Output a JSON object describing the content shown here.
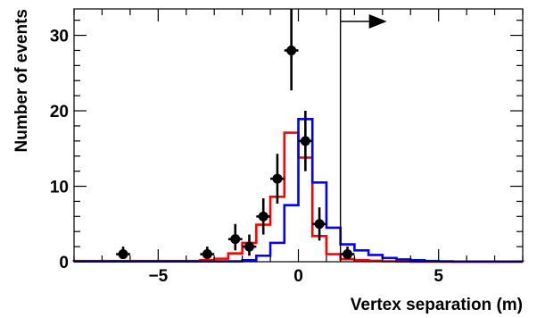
{
  "chart_data": {
    "type": "line",
    "xlabel": "Vertex separation (m)",
    "ylabel": "Number of events",
    "xlim": [
      -8,
      8
    ],
    "ylim": [
      0,
      33.5
    ],
    "x_ticks": [
      -5,
      0,
      5
    ],
    "y_ticks": [
      0,
      10,
      20,
      30
    ],
    "cut_value": 1.5,
    "colors": {
      "data": "#000000",
      "red": "#ff0000",
      "blue": "#0000ff",
      "cut": "#000000"
    },
    "data_points": [
      {
        "x": -6.25,
        "y": 1,
        "yerr_low": 0.6,
        "yerr_high": 1.0
      },
      {
        "x": -3.25,
        "y": 1,
        "yerr_low": 0.6,
        "yerr_high": 1.0
      },
      {
        "x": -2.25,
        "y": 3,
        "yerr_low": 1.5,
        "yerr_high": 2.0
      },
      {
        "x": -1.75,
        "y": 2,
        "yerr_low": 1.2,
        "yerr_high": 1.6
      },
      {
        "x": -1.25,
        "y": 6,
        "yerr_low": 2.4,
        "yerr_high": 2.4
      },
      {
        "x": -0.75,
        "y": 11,
        "yerr_low": 3.3,
        "yerr_high": 3.3
      },
      {
        "x": -0.25,
        "y": 28,
        "yerr_low": 5.3,
        "yerr_high": 5.5
      },
      {
        "x": 0.25,
        "y": 16,
        "yerr_low": 4.0,
        "yerr_high": 4.0
      },
      {
        "x": 0.75,
        "y": 5,
        "yerr_low": 2.2,
        "yerr_high": 2.2
      },
      {
        "x": 1.75,
        "y": 1,
        "yerr_low": 0.6,
        "yerr_high": 1.0
      }
    ],
    "series": [
      {
        "color": "red",
        "bin_edges": [
          -8,
          -3.5,
          -3,
          -2.5,
          -2,
          -1.5,
          -1,
          -0.5,
          0,
          0.5,
          1,
          1.5,
          2,
          2.5,
          3,
          3.5,
          4,
          8
        ],
        "values": [
          0.1,
          0.2,
          0.4,
          1.1,
          2.5,
          4.9,
          8.6,
          17.1,
          13.8,
          3.4,
          1.0,
          0.35,
          0.2,
          0.12,
          0.06,
          0.03,
          0.01
        ]
      },
      {
        "color": "blue",
        "bin_edges": [
          -8,
          -2,
          -1.5,
          -1,
          -0.5,
          0,
          0.5,
          1,
          1.5,
          2,
          2.5,
          3,
          3.5,
          4,
          4.5,
          5,
          5.5,
          8
        ],
        "values": [
          0.05,
          0.2,
          0.8,
          2.5,
          7.5,
          18.9,
          10.5,
          4.5,
          2.3,
          1.5,
          0.9,
          0.5,
          0.3,
          0.2,
          0.1,
          0.05,
          0.02
        ]
      }
    ]
  }
}
